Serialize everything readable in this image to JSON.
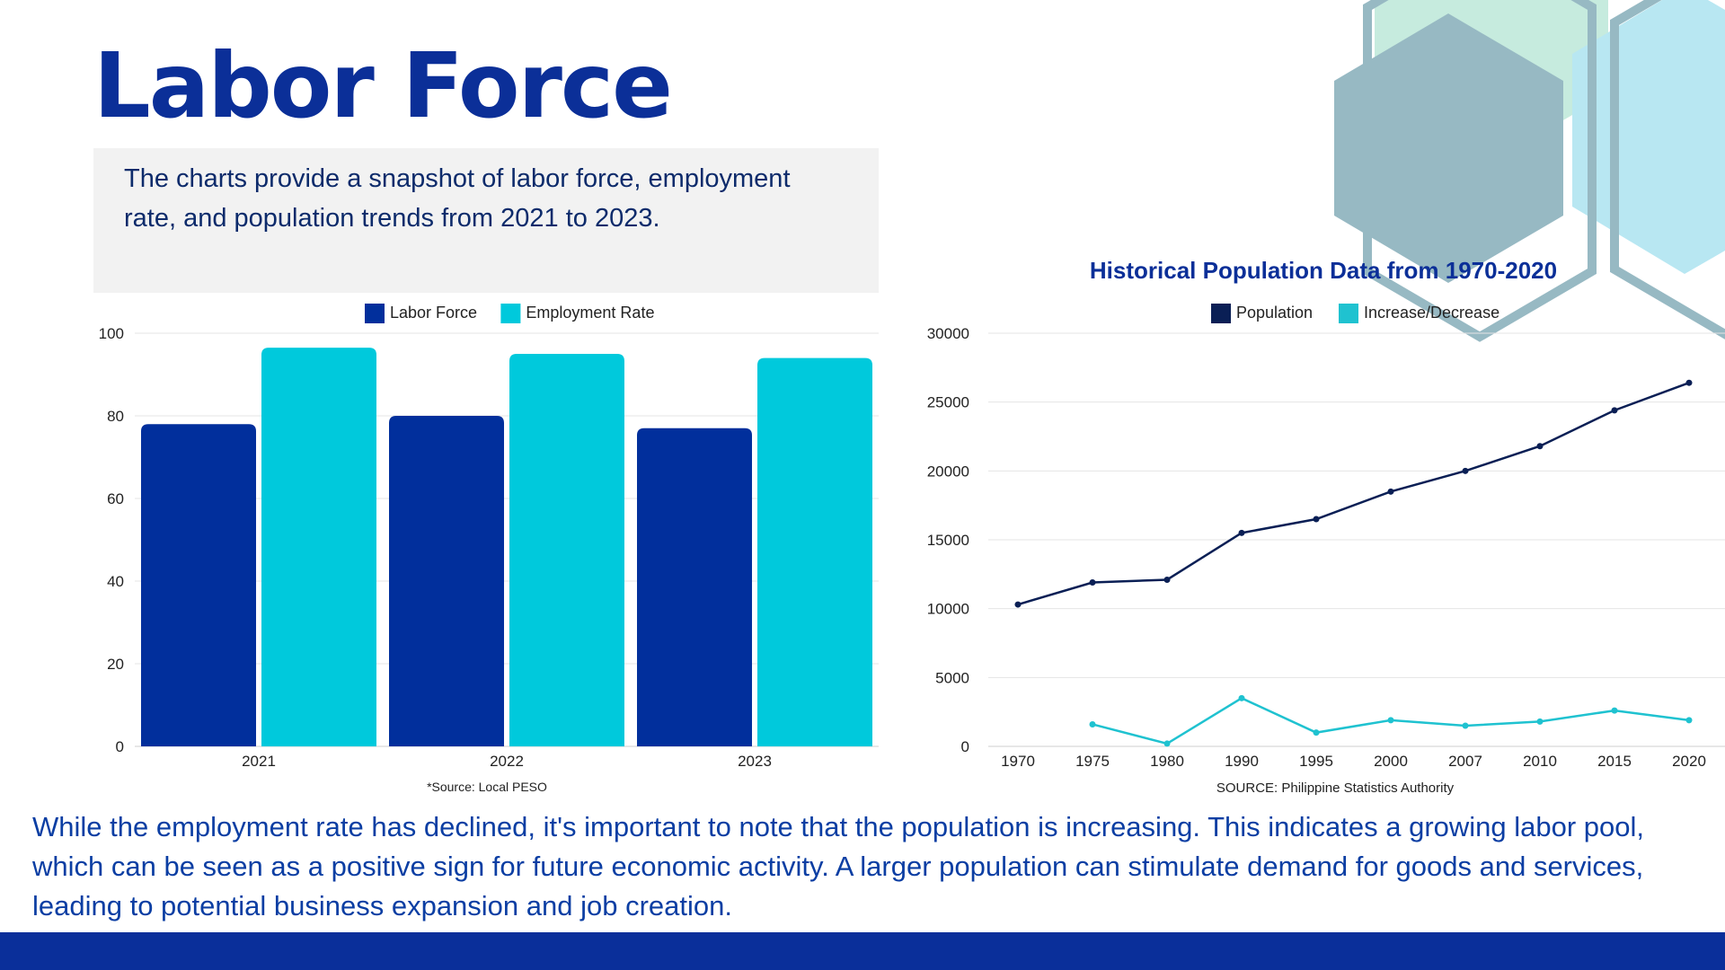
{
  "page": {
    "title": "Labor Force",
    "intro": "The charts provide a snapshot of labor force, employment rate, and population trends from 2021 to 2023.",
    "conclusion": "While the employment rate has declined, it's important to note that the population is increasing. This indicates a growing labor pool, which can be seen as a positive sign for future economic activity. A larger population can stimulate demand for goods and services, leading to potential business expansion and job creation."
  },
  "colors": {
    "title": "#0b2f98",
    "labor_force": "#012f9c",
    "employment_rate": "#00c9dc",
    "population": "#0a1f55",
    "increase_decrease": "#1fc2d0",
    "footer": "#0a2f9a"
  },
  "chart_data": [
    {
      "type": "bar",
      "title": "",
      "categories": [
        "2021",
        "2022",
        "2023"
      ],
      "series": [
        {
          "name": "Labor Force",
          "values": [
            78,
            80,
            77
          ]
        },
        {
          "name": "Employment Rate",
          "values": [
            96.5,
            95,
            94
          ]
        }
      ],
      "ylim": [
        0,
        100
      ],
      "yticks": [
        0,
        20,
        40,
        60,
        80,
        100
      ],
      "grid": true,
      "legend": "top",
      "source": "*Source: Local PESO"
    },
    {
      "type": "line",
      "title": "Historical Population Data from 1970-2020",
      "categories": [
        "1970",
        "1975",
        "1980",
        "1990",
        "1995",
        "2000",
        "2007",
        "2010",
        "2015",
        "2020"
      ],
      "series": [
        {
          "name": "Population",
          "values": [
            10300,
            11900,
            12100,
            15500,
            16500,
            18500,
            20000,
            21800,
            24400,
            26400
          ]
        },
        {
          "name": "Increase/Decrease",
          "values": [
            null,
            1600,
            200,
            3500,
            1000,
            1900,
            1500,
            1800,
            2600,
            1900
          ]
        }
      ],
      "ylim": [
        0,
        30000
      ],
      "yticks": [
        0,
        5000,
        10000,
        15000,
        20000,
        25000,
        30000
      ],
      "grid": true,
      "legend": "top",
      "source": "SOURCE: Philippine Statistics Authority"
    }
  ]
}
